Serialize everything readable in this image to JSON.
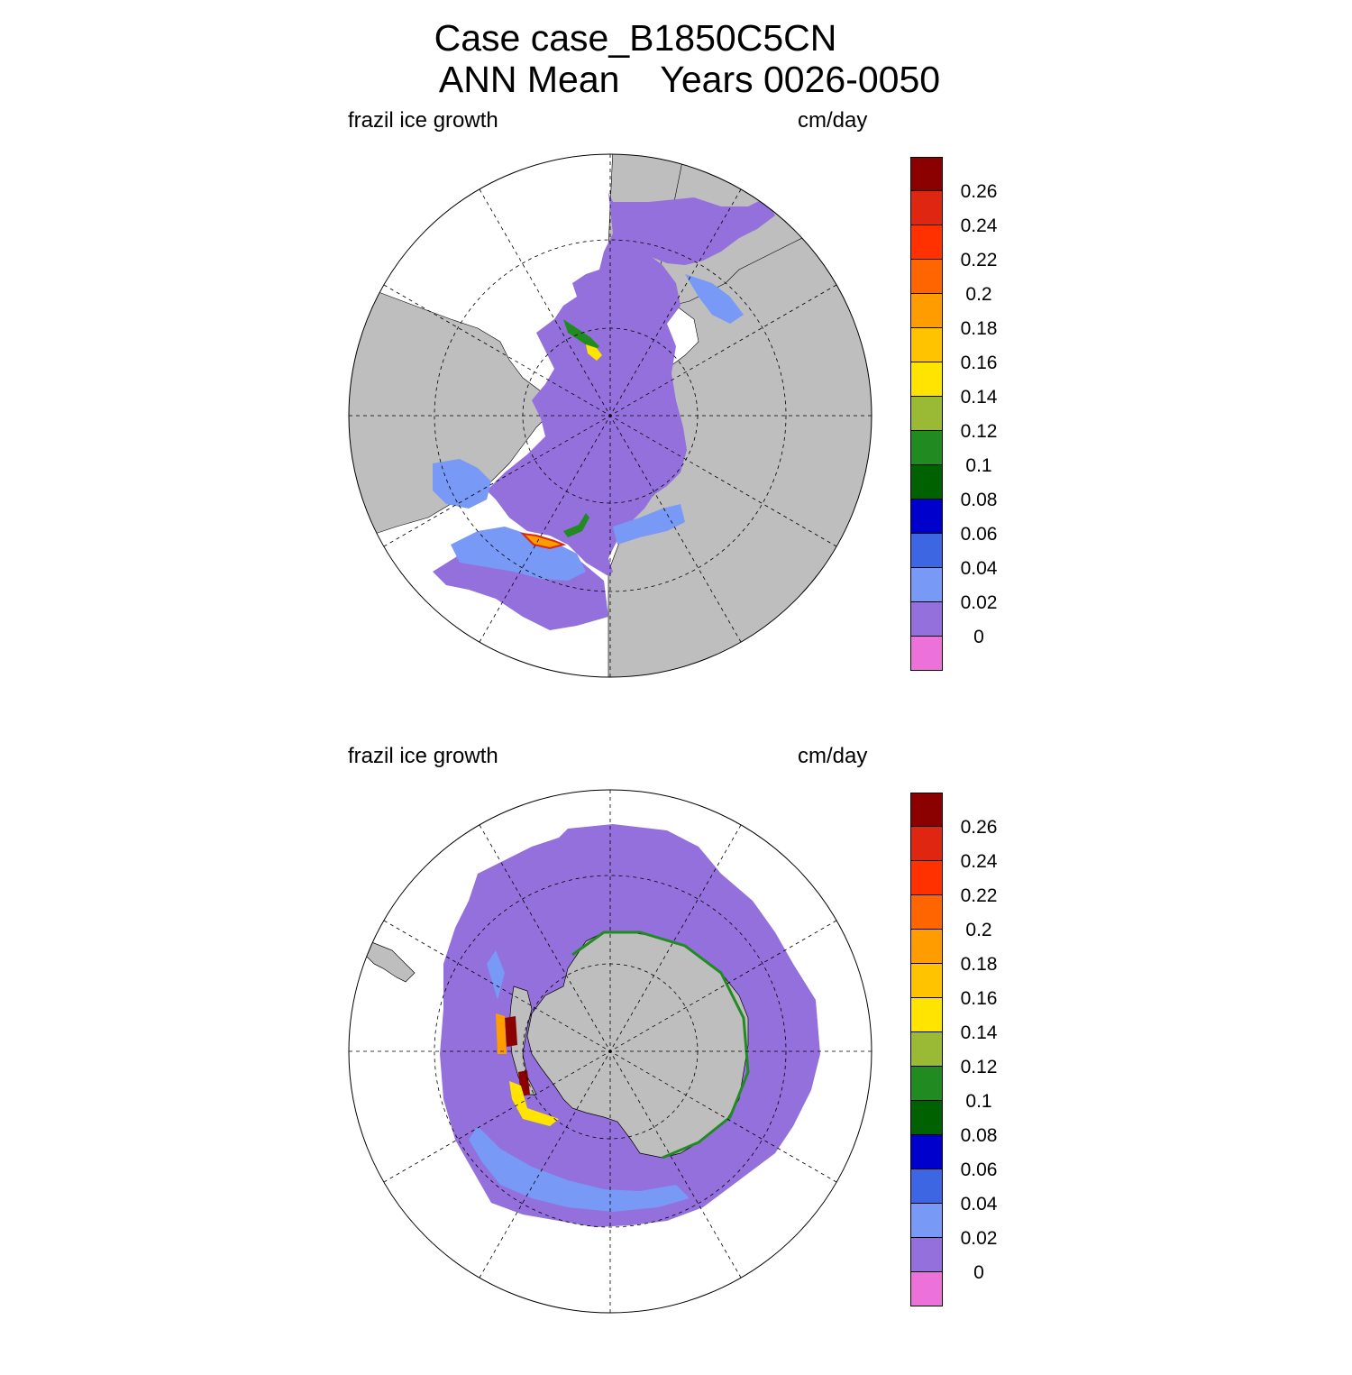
{
  "title": {
    "line1": "Case case_B1850C5CN",
    "line2": "ANN Mean    Years 0026-0050"
  },
  "colorbar": {
    "colors": [
      "#ec71d8",
      "#9370db",
      "#7899f5",
      "#3d66e3",
      "#0000cc",
      "#006100",
      "#218b22",
      "#9ab934",
      "#ffe400",
      "#ffc300",
      "#ff9c00",
      "#ff6500",
      "#ff3100",
      "#df2611",
      "#8b0000"
    ],
    "labels": [
      "0",
      "0.02",
      "0.04",
      "0.06",
      "0.08",
      "0.1",
      "0.12",
      "0.14",
      "0.16",
      "0.18",
      "0.2",
      "0.22",
      "0.24",
      "0.26"
    ]
  },
  "panels": [
    {
      "id": "north",
      "variable_label": "frazil ice growth",
      "units_label": "cm/day",
      "hemisphere": "Northern Hemisphere polar stereographic"
    },
    {
      "id": "south",
      "variable_label": "frazil ice growth",
      "units_label": "cm/day",
      "hemisphere": "Southern Hemisphere polar stereographic"
    }
  ]
}
